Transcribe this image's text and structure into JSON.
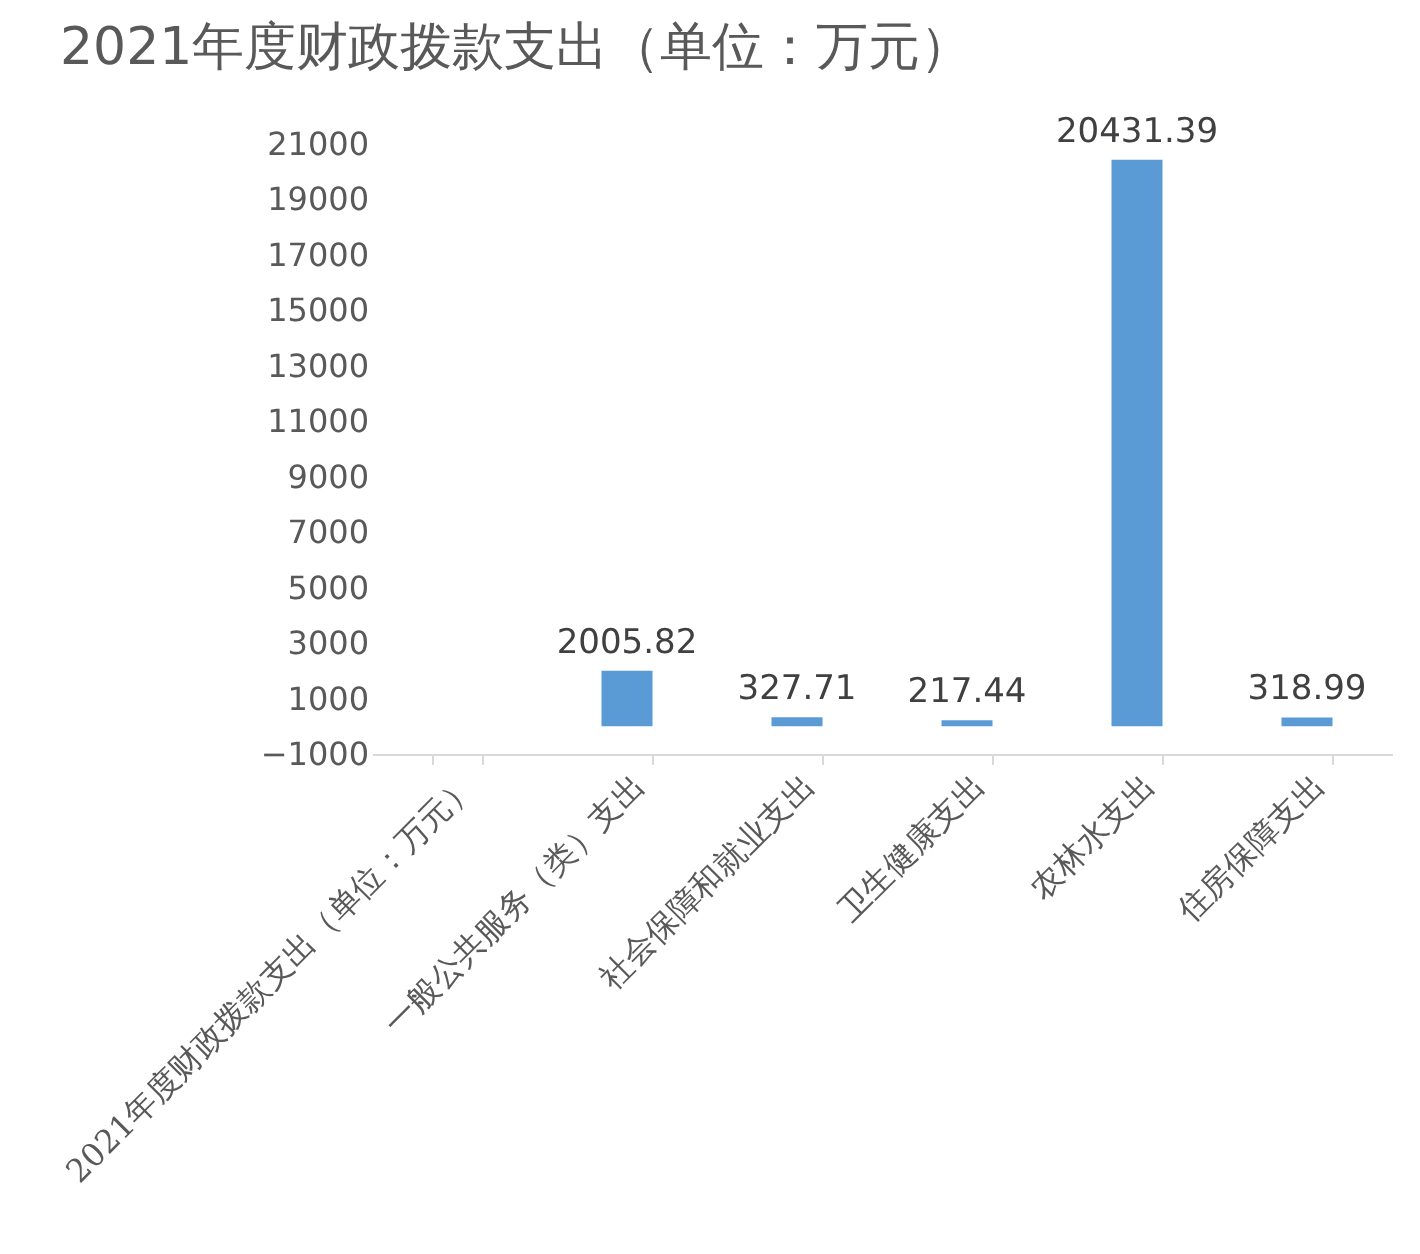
{
  "chart_data": {
    "type": "bar",
    "title": "2021年度财政拨款支出（单位：万元）",
    "categories": [
      "2021年度财政拨款支出（单位：万元）",
      "一般公共服务（类）支出",
      "社会保障和就业支出",
      "卫生健康支出",
      "农林水支出",
      "住房保障支出"
    ],
    "values": [
      null,
      2005.82,
      327.71,
      217.44,
      20431.39,
      318.99
    ],
    "color": "#5b9bd5",
    "ylim": [
      -1000,
      21000
    ],
    "yticks": [
      -1000,
      1000,
      3000,
      5000,
      7000,
      9000,
      11000,
      13000,
      15000,
      17000,
      19000,
      21000
    ],
    "data_labels": true,
    "grid": false
  }
}
